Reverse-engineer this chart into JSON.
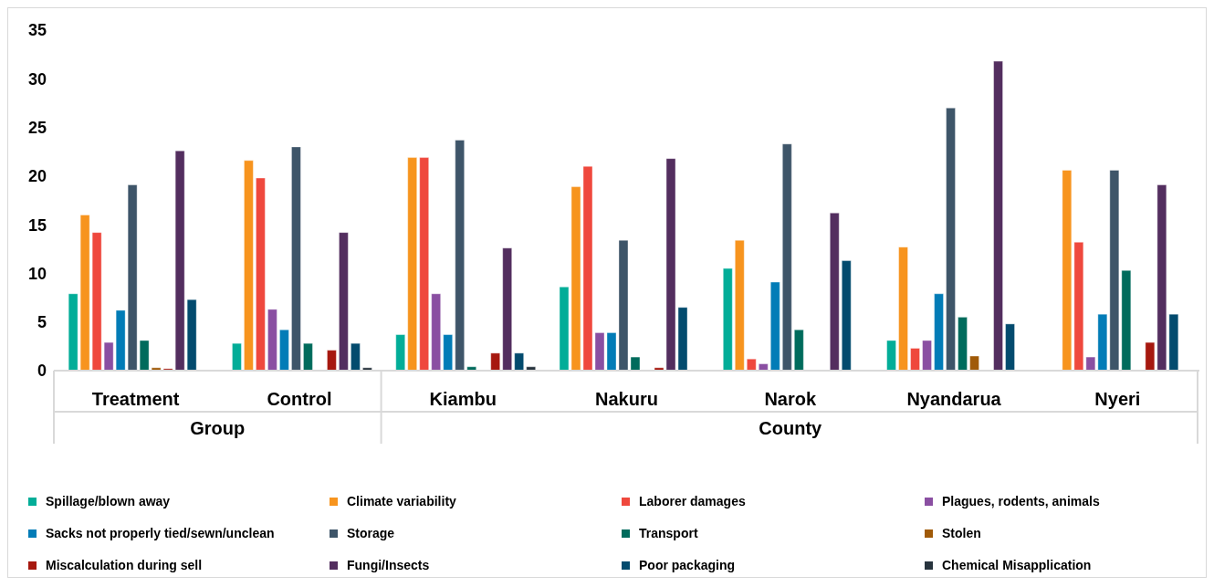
{
  "chart_data": {
    "type": "bar",
    "categories": [
      "Treatment",
      "Control",
      "Kiambu",
      "Nakuru",
      "Narok",
      "Nyandarua",
      "Nyeri"
    ],
    "annotations": [
      "Group",
      "County"
    ],
    "ylim": [
      0,
      35
    ],
    "yticks": [
      0,
      5,
      10,
      15,
      20,
      25,
      30,
      35
    ],
    "grid": false,
    "legend": "bottom",
    "series": [
      {
        "name": "Spillage/blown away",
        "color": "#02ad98",
        "values": [
          7.9,
          2.8,
          3.7,
          8.6,
          10.5,
          3.1,
          0
        ]
      },
      {
        "name": "Climate variability",
        "color": "#f7941e",
        "values": [
          16.0,
          21.6,
          21.9,
          18.9,
          13.4,
          12.7,
          20.6
        ]
      },
      {
        "name": "Laborer damages",
        "color": "#ef483d",
        "values": [
          14.2,
          19.8,
          21.9,
          21.0,
          1.2,
          2.3,
          13.2
        ]
      },
      {
        "name": "Plagues, rodents, animals",
        "color": "#8a4fa2",
        "values": [
          2.9,
          6.3,
          7.9,
          3.9,
          0.7,
          3.1,
          1.4
        ]
      },
      {
        "name": "Sacks not properly tied/sewn/unclean",
        "color": "#027cb7",
        "values": [
          6.2,
          4.2,
          3.7,
          3.9,
          9.1,
          7.9,
          5.8
        ]
      },
      {
        "name": "Storage",
        "color": "#3e5569",
        "values": [
          19.1,
          23.0,
          23.7,
          13.4,
          23.3,
          27.0,
          20.6
        ]
      },
      {
        "name": "Transport",
        "color": "#006b5c",
        "values": [
          3.1,
          2.8,
          0.4,
          1.4,
          4.2,
          5.5,
          10.3
        ]
      },
      {
        "name": "Stolen",
        "color": "#a05a08",
        "values": [
          0.3,
          0,
          0,
          0,
          0,
          1.5,
          0
        ]
      },
      {
        "name": "Miscalculation during sell",
        "color": "#a6180f",
        "values": [
          0.2,
          2.1,
          1.8,
          0.3,
          0,
          0,
          2.9
        ]
      },
      {
        "name": "Fungi/Insects",
        "color": "#532e5f",
        "values": [
          22.6,
          14.2,
          12.6,
          21.8,
          16.2,
          31.8,
          19.1
        ]
      },
      {
        "name": "Poor packaging",
        "color": "#034b6e",
        "values": [
          7.3,
          2.8,
          1.8,
          6.5,
          11.3,
          4.8,
          5.8
        ]
      },
      {
        "name": "Chemical Misapplication",
        "color": "#28343e",
        "values": [
          0,
          0.3,
          0.4,
          0,
          0,
          0,
          0
        ]
      }
    ]
  }
}
